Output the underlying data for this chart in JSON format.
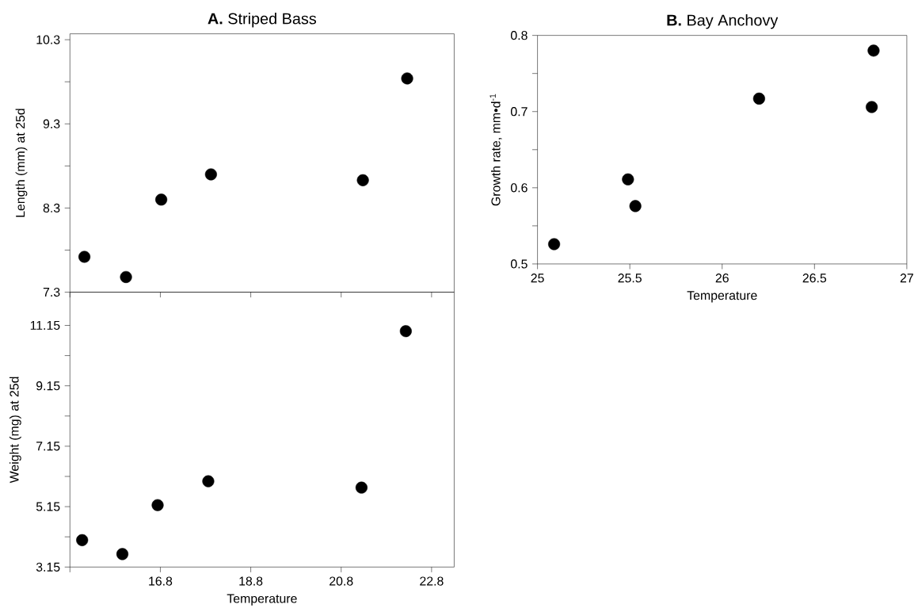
{
  "chart_data": [
    {
      "type": "scatter",
      "title": "**A.** Striped Bass",
      "ylabel": "Length (mm) at 25d",
      "x": [
        15.12,
        16.04,
        16.82,
        17.92,
        21.28,
        22.26
      ],
      "values": [
        7.72,
        7.48,
        8.4,
        8.7,
        8.63,
        9.84
      ],
      "color": "#000000",
      "marker": "circle",
      "xlim": [
        14.8,
        23.3
      ],
      "ylim": [
        7.3,
        10.37
      ],
      "xticks": [
        {
          "value": 14.8,
          "label": null
        },
        {
          "value": 16.8,
          "label": null
        },
        {
          "value": 18.8,
          "label": null
        },
        {
          "value": 20.8,
          "label": null
        },
        {
          "value": 22.8,
          "label": null
        }
      ],
      "yticks": [
        7.3,
        {
          "value": 7.8,
          "label": null
        },
        8.3,
        {
          "value": 8.8,
          "label": null
        },
        9.3,
        {
          "value": 9.8,
          "label": null
        },
        10.3
      ],
      "tick_labels": "y"
    },
    {
      "type": "scatter",
      "xlabel": "Temperature",
      "ylabel": "Weight (mg) at 25d",
      "x": [
        15.07,
        15.96,
        16.74,
        17.86,
        21.25,
        22.23
      ],
      "values": [
        4.04,
        3.58,
        5.2,
        5.99,
        5.78,
        10.96
      ],
      "color": "#000000",
      "marker": "circle",
      "xlim": [
        14.8,
        23.3
      ],
      "ylim": [
        3.15,
        12.25
      ],
      "xticks": [
        {
          "value": 14.8,
          "label": null
        },
        16.8,
        18.8,
        20.8,
        22.8
      ],
      "yticks": [
        3.15,
        {
          "value": 4.15,
          "label": null
        },
        5.15,
        {
          "value": 6.15,
          "label": null
        },
        7.15,
        {
          "value": 8.15,
          "label": null
        },
        9.15,
        {
          "value": 10.15,
          "label": null
        },
        11.15
      ]
    },
    {
      "type": "scatter",
      "title": "**B.** Bay Anchovy",
      "xlabel": "Temperature",
      "ylabel": "Growth rate, mm•d$^{-1}$",
      "x": [
        25.09,
        25.49,
        25.53,
        26.2,
        26.81,
        26.82
      ],
      "values": [
        0.526,
        0.611,
        0.576,
        0.717,
        0.706,
        0.78
      ],
      "color": "#000000",
      "marker": "circle",
      "xlim": [
        25,
        27
      ],
      "ylim": [
        0.5,
        0.8
      ],
      "xticks": [
        25,
        25.5,
        26,
        26.5,
        27
      ],
      "yticks": [
        0.5,
        {
          "value": 0.55,
          "label": null
        },
        0.6,
        {
          "value": 0.65,
          "label": null
        },
        0.7,
        {
          "value": 0.75,
          "label": null
        },
        0.8
      ]
    }
  ]
}
